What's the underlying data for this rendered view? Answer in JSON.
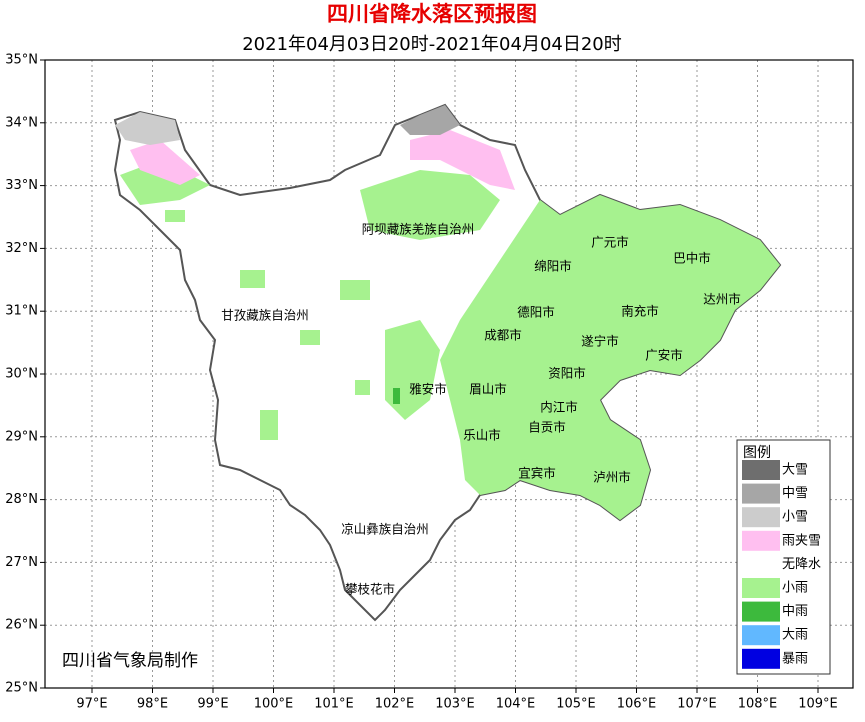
{
  "header": {
    "title": "四川省降水落区预报图",
    "subtitle": "2021年04月03日20时-2021年04月04日20时"
  },
  "axes": {
    "lat_ticks": [
      "35°N",
      "34°N",
      "33°N",
      "32°N",
      "31°N",
      "30°N",
      "29°N",
      "28°N",
      "27°N",
      "26°N",
      "25°N"
    ],
    "lon_ticks": [
      "97°E",
      "98°E",
      "99°E",
      "100°E",
      "101°E",
      "102°E",
      "103°E",
      "104°E",
      "105°E",
      "106°E",
      "107°E",
      "108°E",
      "109°E"
    ]
  },
  "regions": [
    "阿坝藏族羌族自治州",
    "甘孜藏族自治州",
    "凉山彝族自治州",
    "攀枝花市",
    "广元市",
    "巴中市",
    "绵阳市",
    "达州市",
    "德阳市",
    "南充市",
    "成都市",
    "遂宁市",
    "广安市",
    "资阳市",
    "雅安市",
    "眉山市",
    "内江市",
    "乐山市",
    "自贡市",
    "宜宾市",
    "泸州市"
  ],
  "legend": {
    "title": "图例",
    "items": [
      {
        "label": "大雪",
        "color": "#6e6e6e"
      },
      {
        "label": "中雪",
        "color": "#a6a6a6"
      },
      {
        "label": "小雪",
        "color": "#cccccc"
      },
      {
        "label": "雨夹雪",
        "color": "#ffbff0"
      },
      {
        "label": "无降水",
        "color": "#ffffff"
      },
      {
        "label": "小雨",
        "color": "#a6f28f"
      },
      {
        "label": "中雨",
        "color": "#3dba3d"
      },
      {
        "label": "大雨",
        "color": "#61b8ff"
      },
      {
        "label": "暴雨",
        "color": "#0000e1"
      }
    ]
  },
  "credit": "四川省气象局制作"
}
